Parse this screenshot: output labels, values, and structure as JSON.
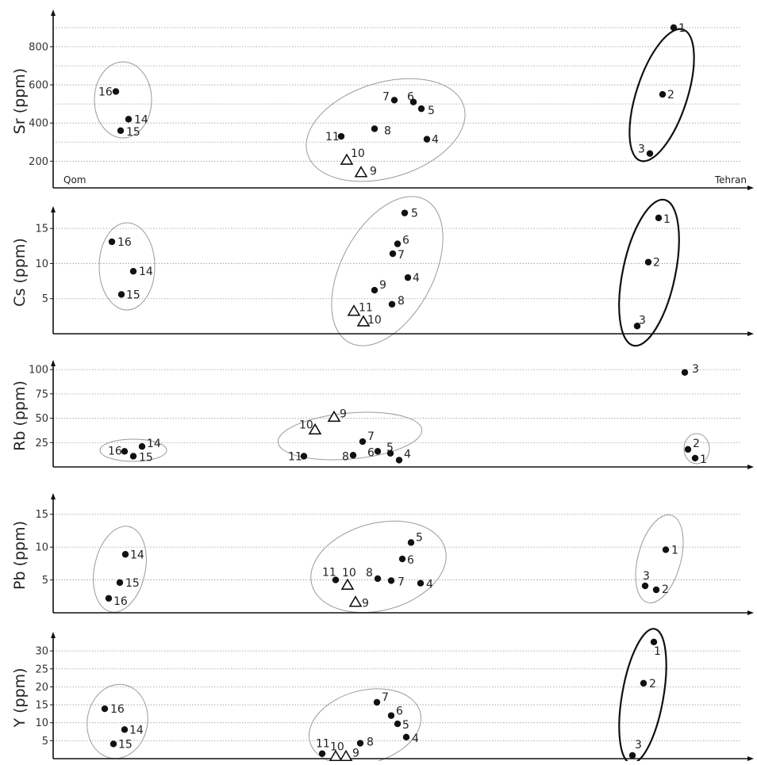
{
  "chart_data": [
    {
      "type": "scatter",
      "ylabel": "Sr (ppm)",
      "x_start_label": "Qom",
      "x_end_label": "Tehran",
      "ylim": [
        60,
        970
      ],
      "yticks": [
        200,
        400,
        600,
        800
      ],
      "yticklabels": [
        "200",
        "400",
        "600",
        "800"
      ],
      "gridlines": [
        200,
        300,
        400,
        500,
        600,
        700,
        800,
        900
      ],
      "points": [
        {
          "label": "1",
          "x": 849,
          "y": 900,
          "marker": "dot"
        },
        {
          "label": "2",
          "x": 835,
          "y": 550,
          "marker": "dot"
        },
        {
          "label": "3",
          "x": 819,
          "y": 240,
          "marker": "dot"
        },
        {
          "label": "4",
          "x": 538,
          "y": 315,
          "marker": "dot"
        },
        {
          "label": "5",
          "x": 531,
          "y": 475,
          "marker": "dot"
        },
        {
          "label": "6",
          "x": 521,
          "y": 510,
          "marker": "dot"
        },
        {
          "label": "7",
          "x": 497,
          "y": 520,
          "marker": "dot"
        },
        {
          "label": "8",
          "x": 472,
          "y": 370,
          "marker": "dot"
        },
        {
          "label": "9",
          "x": 455,
          "y": 140,
          "marker": "triangle"
        },
        {
          "label": "10",
          "x": 437,
          "y": 205,
          "marker": "triangle"
        },
        {
          "label": "11",
          "x": 430,
          "y": 330,
          "marker": "dot"
        },
        {
          "label": "14",
          "x": 162,
          "y": 420,
          "marker": "dot"
        },
        {
          "label": "15",
          "x": 152,
          "y": 360,
          "marker": "dot"
        },
        {
          "label": "16",
          "x": 146,
          "y": 565,
          "marker": "dot"
        }
      ]
    },
    {
      "type": "scatter",
      "ylabel": "Cs (ppm)",
      "ylim": [
        0,
        17.5
      ],
      "yticks": [
        5,
        10,
        15
      ],
      "yticklabels": [
        "5",
        "10",
        "15"
      ],
      "gridlines": [
        5,
        10,
        15
      ],
      "points": [
        {
          "label": "1",
          "x": 830,
          "y": 16.5,
          "marker": "dot"
        },
        {
          "label": "2",
          "x": 817,
          "y": 10.2,
          "marker": "dot"
        },
        {
          "label": "3",
          "x": 803,
          "y": 1.1,
          "marker": "dot"
        },
        {
          "label": "4",
          "x": 514,
          "y": 8.0,
          "marker": "dot"
        },
        {
          "label": "5",
          "x": 510,
          "y": 17.2,
          "marker": "dot"
        },
        {
          "label": "6",
          "x": 501,
          "y": 12.8,
          "marker": "dot"
        },
        {
          "label": "7",
          "x": 495,
          "y": 11.4,
          "marker": "dot"
        },
        {
          "label": "8",
          "x": 494,
          "y": 4.2,
          "marker": "dot"
        },
        {
          "label": "9",
          "x": 472,
          "y": 6.2,
          "marker": "dot"
        },
        {
          "label": "10",
          "x": 458,
          "y": 1.7,
          "marker": "triangle"
        },
        {
          "label": "11",
          "x": 446,
          "y": 3.2,
          "marker": "triangle"
        },
        {
          "label": "14",
          "x": 168,
          "y": 8.9,
          "marker": "dot"
        },
        {
          "label": "15",
          "x": 153,
          "y": 5.6,
          "marker": "dot"
        },
        {
          "label": "16",
          "x": 141,
          "y": 13.1,
          "marker": "dot"
        }
      ]
    },
    {
      "type": "scatter",
      "ylabel": "Rb (ppm)",
      "ylim": [
        0,
        105
      ],
      "yticks": [
        25,
        50,
        75,
        100
      ],
      "yticklabels": [
        "25",
        "50",
        "75",
        "100"
      ],
      "gridlines": [
        25,
        50,
        75,
        100
      ],
      "points": [
        {
          "label": "1",
          "x": 876,
          "y": 9,
          "marker": "dot"
        },
        {
          "label": "2",
          "x": 867,
          "y": 18,
          "marker": "dot"
        },
        {
          "label": "3",
          "x": 863,
          "y": 97,
          "marker": "dot"
        },
        {
          "label": "4",
          "x": 503,
          "y": 7,
          "marker": "dot"
        },
        {
          "label": "5",
          "x": 492,
          "y": 14,
          "marker": "dot"
        },
        {
          "label": "6",
          "x": 476,
          "y": 16,
          "marker": "dot"
        },
        {
          "label": "7",
          "x": 457,
          "y": 26,
          "marker": "dot"
        },
        {
          "label": "8",
          "x": 445,
          "y": 12,
          "marker": "dot"
        },
        {
          "label": "9",
          "x": 421,
          "y": 51,
          "marker": "triangle"
        },
        {
          "label": "10",
          "x": 397,
          "y": 38,
          "marker": "triangle"
        },
        {
          "label": "11",
          "x": 383,
          "y": 11,
          "marker": "dot"
        },
        {
          "label": "14",
          "x": 179,
          "y": 21,
          "marker": "dot"
        },
        {
          "label": "15",
          "x": 168,
          "y": 11,
          "marker": "dot"
        },
        {
          "label": "16",
          "x": 157,
          "y": 16,
          "marker": "dot"
        }
      ]
    },
    {
      "type": "scatter",
      "ylabel": "Pb (ppm)",
      "ylim": [
        0,
        17.5
      ],
      "yticks": [
        5,
        10,
        15
      ],
      "yticklabels": [
        "5",
        "10",
        "15"
      ],
      "gridlines": [
        5,
        10,
        15
      ],
      "points": [
        {
          "label": "1",
          "x": 839,
          "y": 9.6,
          "marker": "dot"
        },
        {
          "label": "2",
          "x": 827,
          "y": 3.5,
          "marker": "dot"
        },
        {
          "label": "3",
          "x": 813,
          "y": 4.1,
          "marker": "dot"
        },
        {
          "label": "4",
          "x": 530,
          "y": 4.5,
          "marker": "dot"
        },
        {
          "label": "5",
          "x": 518,
          "y": 10.7,
          "marker": "dot"
        },
        {
          "label": "6",
          "x": 507,
          "y": 8.2,
          "marker": "dot"
        },
        {
          "label": "7",
          "x": 493,
          "y": 4.9,
          "marker": "dot"
        },
        {
          "label": "8",
          "x": 476,
          "y": 5.2,
          "marker": "dot"
        },
        {
          "label": "9",
          "x": 448,
          "y": 1.6,
          "marker": "triangle"
        },
        {
          "label": "10",
          "x": 438,
          "y": 4.2,
          "marker": "triangle"
        },
        {
          "label": "11",
          "x": 423,
          "y": 5.0,
          "marker": "dot"
        },
        {
          "label": "14",
          "x": 158,
          "y": 8.9,
          "marker": "dot"
        },
        {
          "label": "15",
          "x": 151,
          "y": 4.6,
          "marker": "dot"
        },
        {
          "label": "16",
          "x": 137,
          "y": 2.2,
          "marker": "dot"
        }
      ]
    },
    {
      "type": "scatter",
      "ylabel": "Y (ppm)",
      "ylim": [
        0,
        34
      ],
      "yticks": [
        5,
        10,
        15,
        20,
        25,
        30
      ],
      "yticklabels": [
        "5",
        "10",
        "15",
        "20",
        "25",
        "30"
      ],
      "gridlines": [
        5,
        10,
        15,
        20,
        25,
        30
      ],
      "points": [
        {
          "label": "1",
          "x": 824,
          "y": 32.5,
          "marker": "dot"
        },
        {
          "label": "2",
          "x": 811,
          "y": 21.0,
          "marker": "dot"
        },
        {
          "label": "3",
          "x": 797,
          "y": 0.9,
          "marker": "dot"
        },
        {
          "label": "4",
          "x": 512,
          "y": 6.0,
          "marker": "dot"
        },
        {
          "label": "5",
          "x": 501,
          "y": 9.7,
          "marker": "dot"
        },
        {
          "label": "6",
          "x": 493,
          "y": 12.0,
          "marker": "dot"
        },
        {
          "label": "7",
          "x": 475,
          "y": 15.7,
          "marker": "dot"
        },
        {
          "label": "8",
          "x": 454,
          "y": 4.3,
          "marker": "dot"
        },
        {
          "label": "9",
          "x": 436,
          "y": 0.6,
          "marker": "triangle"
        },
        {
          "label": "10",
          "x": 423,
          "y": 0.6,
          "marker": "triangle"
        },
        {
          "label": "11",
          "x": 406,
          "y": 1.4,
          "marker": "dot"
        },
        {
          "label": "14",
          "x": 157,
          "y": 8.1,
          "marker": "dot"
        },
        {
          "label": "15",
          "x": 143,
          "y": 4.1,
          "marker": "dot"
        },
        {
          "label": "16",
          "x": 132,
          "y": 13.9,
          "marker": "dot"
        }
      ]
    }
  ]
}
